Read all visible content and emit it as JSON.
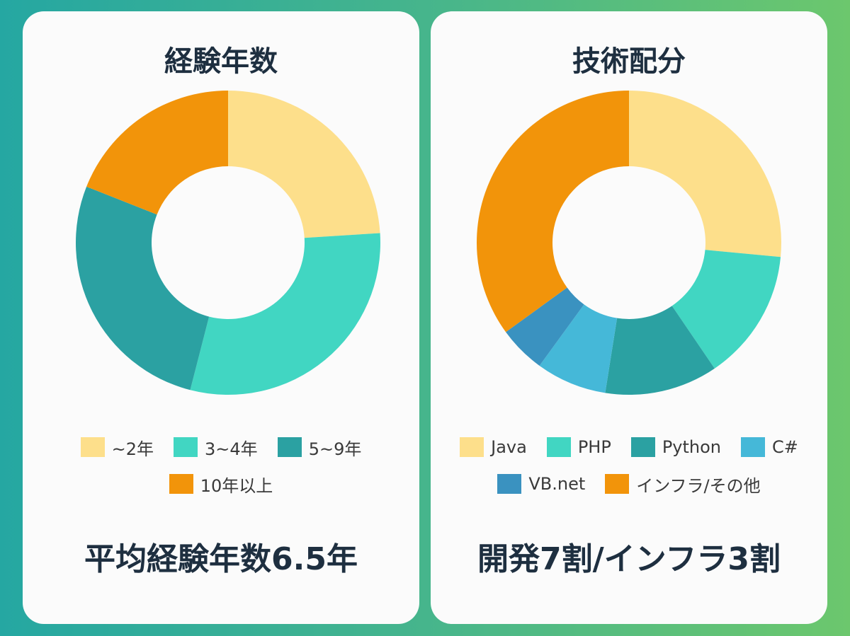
{
  "charts": {
    "experience": {
      "title": "経験年数",
      "summary": "平均経験年数6.5年"
    },
    "tech": {
      "title": "技術配分",
      "summary": "開発7割/インフラ3割"
    }
  },
  "chart_data": [
    {
      "type": "pie",
      "donut": true,
      "title": "経験年数",
      "categories": [
        "~2年",
        "3~4年",
        "5~9年",
        "10年以上"
      ],
      "values": [
        24,
        30,
        27,
        19
      ],
      "colors": [
        "#fddf8b",
        "#41d6c2",
        "#2ba1a2",
        "#f2940a"
      ],
      "legend_position": "bottom"
    },
    {
      "type": "pie",
      "donut": true,
      "title": "技術配分",
      "categories": [
        "Java",
        "PHP",
        "Python",
        "C#",
        "VB.net",
        "インフラ/その他"
      ],
      "values": [
        26.5,
        14,
        12,
        7.5,
        5,
        35
      ],
      "colors": [
        "#fddf8b",
        "#41d6c2",
        "#2ba1a2",
        "#45b8d8",
        "#3a92c0",
        "#f2940a"
      ],
      "legend_position": "bottom"
    }
  ]
}
